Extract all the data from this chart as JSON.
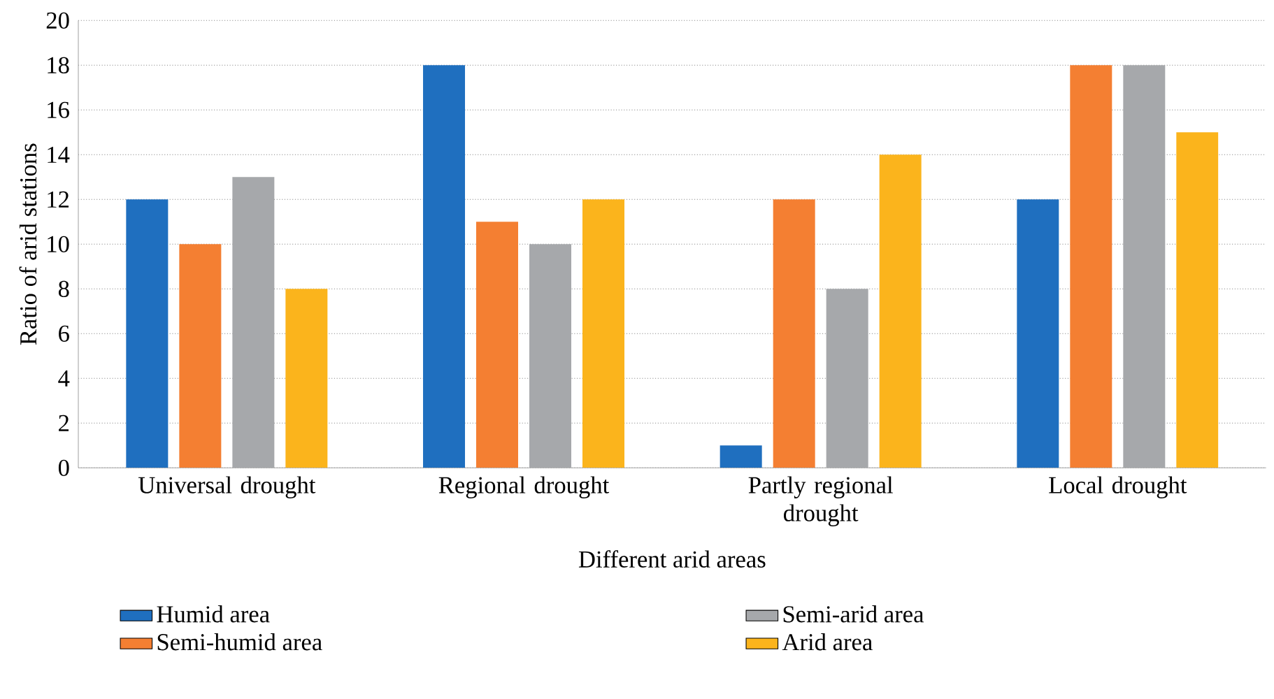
{
  "chart_data": {
    "type": "bar",
    "xlabel": "Different arid areas",
    "ylabel": "Ratio of arid stations",
    "categories": [
      "Universal drought",
      "Regional drought",
      "Partly regional drought",
      "Local drought"
    ],
    "series": [
      {
        "name": "Humid area",
        "color": "#1f6fbf",
        "values": [
          12,
          18,
          1,
          12
        ]
      },
      {
        "name": "Semi-humid area",
        "color": "#f47f32",
        "values": [
          10,
          11,
          12,
          18
        ]
      },
      {
        "name": "Semi-arid area",
        "color": "#a6a8ab",
        "values": [
          13,
          10,
          8,
          18
        ]
      },
      {
        "name": "Arid area",
        "color": "#fbb41c",
        "values": [
          8,
          12,
          14,
          15
        ]
      }
    ],
    "ylim": [
      0,
      20
    ],
    "yticks": [
      0,
      2,
      4,
      6,
      8,
      10,
      12,
      14,
      16,
      18,
      20
    ],
    "grid": "y",
    "legend": "bottom"
  }
}
